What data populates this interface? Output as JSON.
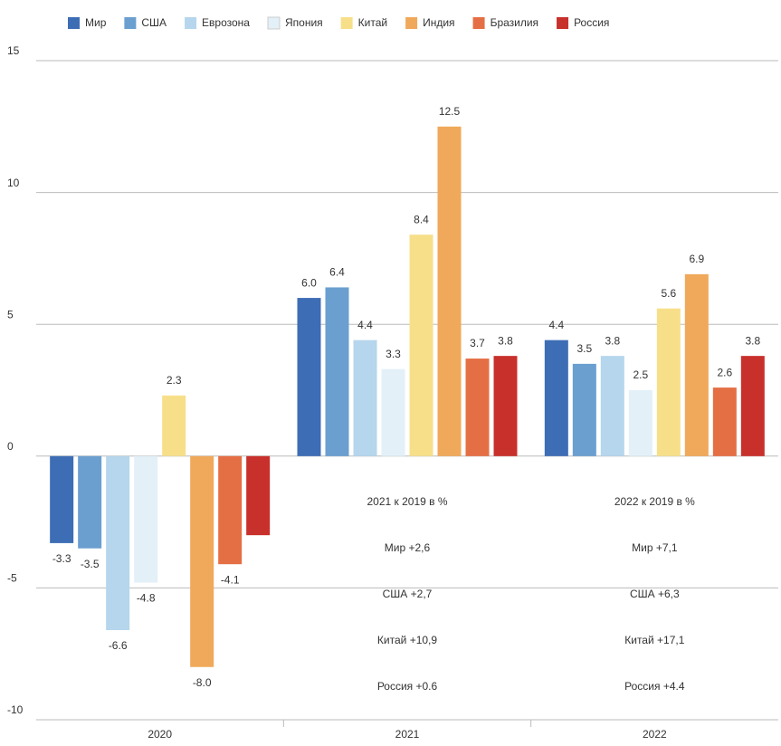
{
  "chart_data": {
    "type": "bar",
    "categories": [
      "2020",
      "2021",
      "2022"
    ],
    "series": [
      {
        "name": "Мир",
        "color": "#3d6db5",
        "values": [
          -3.3,
          6.0,
          4.4
        ],
        "value_labels": [
          "-3.3",
          "6.0",
          "4.4"
        ]
      },
      {
        "name": "США",
        "color": "#6a9fd0",
        "values": [
          -3.5,
          6.4,
          3.5
        ],
        "value_labels": [
          "-3.5",
          "6.4",
          "3.5"
        ]
      },
      {
        "name": "Еврозона",
        "color": "#b5d6ec",
        "values": [
          -6.6,
          4.4,
          3.8
        ],
        "value_labels": [
          "-6.6",
          "4.4",
          "3.8"
        ]
      },
      {
        "name": "Япония",
        "color": "#e3f0f8",
        "values": [
          -4.8,
          3.3,
          2.5
        ],
        "value_labels": [
          "-4.8",
          "3.3",
          "2.5"
        ]
      },
      {
        "name": "Китай",
        "color": "#f7df8a",
        "values": [
          2.3,
          8.4,
          5.6
        ],
        "value_labels": [
          "2.3",
          "8.4",
          "5.6"
        ]
      },
      {
        "name": "Индия",
        "color": "#f0a95a",
        "values": [
          -8.0,
          12.5,
          6.9
        ],
        "value_labels": [
          "-8.0",
          "12.5",
          "6.9"
        ]
      },
      {
        "name": "Бразилия",
        "color": "#e56f45",
        "values": [
          -4.1,
          3.7,
          2.6
        ],
        "value_labels": [
          "-4.1",
          "3.7",
          "2.6"
        ]
      },
      {
        "name": "Россия",
        "color": "#c8302c",
        "values": [
          -3.0,
          3.8,
          3.8
        ],
        "value_labels": [
          null,
          "3.8",
          "3.8"
        ]
      }
    ],
    "ylim": [
      -10,
      15
    ],
    "yticks": [
      -10,
      -5,
      0,
      5,
      10,
      15
    ],
    "grid": true,
    "legend": "top",
    "annotations": [
      [
        "2021 к 2019 в %",
        "Мир +2,6",
        "США +2,7",
        "Китай +10,9",
        "Россия +0.6"
      ],
      [
        "2022 к 2019 в %",
        "Мир +7,1",
        "США +6,3",
        "Китай +17,1",
        "Россия +4.4"
      ]
    ]
  }
}
